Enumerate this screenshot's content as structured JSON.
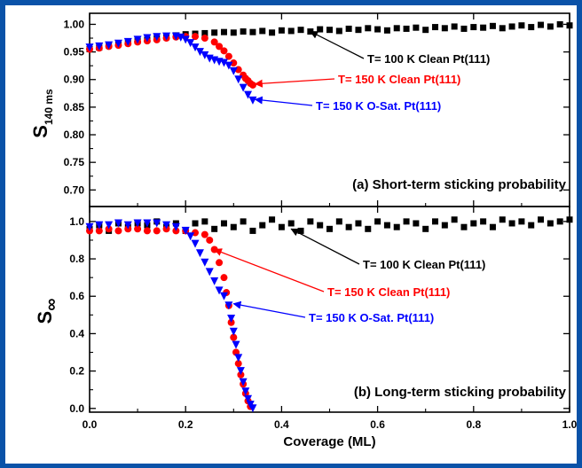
{
  "chart_data": [
    {
      "type": "scatter",
      "panel_label": "(a) Short-term sticking probability",
      "ylabel_main": "S",
      "ylabel_sub": "140 ms",
      "xlabel": "",
      "xlim": [
        0.0,
        1.0
      ],
      "ylim": [
        0.67,
        1.02
      ],
      "yticks": [
        "1.00",
        "0.95",
        "0.90",
        "0.85",
        "0.80",
        "0.75",
        "0.70"
      ],
      "series": [
        {
          "name": "T= 100 K Clean Pt(111)",
          "color": "#000000",
          "marker": "square",
          "x": [
            0.0,
            0.02,
            0.04,
            0.06,
            0.08,
            0.1,
            0.12,
            0.14,
            0.16,
            0.18,
            0.2,
            0.22,
            0.24,
            0.26,
            0.28,
            0.3,
            0.32,
            0.34,
            0.36,
            0.38,
            0.4,
            0.42,
            0.44,
            0.46,
            0.48,
            0.5,
            0.52,
            0.54,
            0.56,
            0.58,
            0.6,
            0.62,
            0.64,
            0.66,
            0.68,
            0.7,
            0.72,
            0.74,
            0.76,
            0.78,
            0.8,
            0.82,
            0.84,
            0.86,
            0.88,
            0.9,
            0.92,
            0.94,
            0.96,
            0.98,
            1.0
          ],
          "y": [
            0.955,
            0.958,
            0.962,
            0.965,
            0.968,
            0.97,
            0.972,
            0.975,
            0.977,
            0.98,
            0.982,
            0.983,
            0.984,
            0.985,
            0.986,
            0.985,
            0.987,
            0.986,
            0.988,
            0.985,
            0.989,
            0.988,
            0.99,
            0.987,
            0.991,
            0.99,
            0.988,
            0.992,
            0.99,
            0.993,
            0.991,
            0.989,
            0.993,
            0.992,
            0.994,
            0.99,
            0.995,
            0.993,
            0.996,
            0.992,
            0.995,
            0.994,
            0.997,
            0.993,
            0.996,
            0.998,
            0.995,
            0.999,
            0.996,
            1.0,
            0.998
          ]
        },
        {
          "name": "T= 150 K Clean Pt(111)",
          "color": "#ff0000",
          "marker": "circle",
          "x": [
            0.0,
            0.02,
            0.04,
            0.06,
            0.08,
            0.1,
            0.12,
            0.14,
            0.16,
            0.18,
            0.2,
            0.22,
            0.24,
            0.26,
            0.27,
            0.28,
            0.29,
            0.3,
            0.31,
            0.32,
            0.325,
            0.33,
            0.335,
            0.34
          ],
          "y": [
            0.955,
            0.957,
            0.96,
            0.962,
            0.965,
            0.968,
            0.97,
            0.972,
            0.975,
            0.977,
            0.978,
            0.978,
            0.975,
            0.968,
            0.96,
            0.952,
            0.942,
            0.93,
            0.918,
            0.908,
            0.902,
            0.898,
            0.893,
            0.89
          ]
        },
        {
          "name": "T= 150 K O-Sat. Pt(111)",
          "color": "#0000ff",
          "marker": "triangle-down",
          "x": [
            0.0,
            0.02,
            0.04,
            0.06,
            0.08,
            0.1,
            0.12,
            0.14,
            0.16,
            0.18,
            0.19,
            0.2,
            0.21,
            0.22,
            0.23,
            0.24,
            0.25,
            0.26,
            0.27,
            0.28,
            0.29,
            0.3,
            0.31,
            0.32,
            0.33,
            0.34
          ],
          "y": [
            0.958,
            0.96,
            0.962,
            0.965,
            0.968,
            0.972,
            0.975,
            0.977,
            0.978,
            0.978,
            0.976,
            0.972,
            0.966,
            0.958,
            0.95,
            0.944,
            0.938,
            0.935,
            0.932,
            0.93,
            0.925,
            0.915,
            0.9,
            0.885,
            0.872,
            0.862
          ]
        }
      ],
      "annotations": [
        {
          "text": "T= 100 K Clean Pt(111)",
          "color": "#000000",
          "arrow_to": [
            0.46,
            0.987
          ]
        },
        {
          "text": "T= 150 K Clean Pt(111)",
          "color": "#ff0000",
          "arrow_to": [
            0.345,
            0.892
          ]
        },
        {
          "text": "T= 150 K O-Sat. Pt(111)",
          "color": "#0000ff",
          "arrow_to": [
            0.345,
            0.864
          ]
        }
      ]
    },
    {
      "type": "scatter",
      "panel_label": "(b) Long-term sticking probability",
      "ylabel_main": "S",
      "ylabel_sub": "∞",
      "xlabel": "Coverage (ML)",
      "xlim": [
        0.0,
        1.0
      ],
      "ylim": [
        -0.02,
        1.08
      ],
      "xticks": [
        "0.0",
        "0.2",
        "0.4",
        "0.6",
        "0.8",
        "1.0"
      ],
      "yticks": [
        "1.0",
        "0.8",
        "0.6",
        "0.4",
        "0.2",
        "0.0"
      ],
      "series": [
        {
          "name": "T= 100 K Clean Pt(111)",
          "color": "#000000",
          "marker": "square",
          "x": [
            0.0,
            0.02,
            0.04,
            0.06,
            0.08,
            0.1,
            0.12,
            0.14,
            0.16,
            0.18,
            0.2,
            0.22,
            0.24,
            0.26,
            0.28,
            0.3,
            0.32,
            0.34,
            0.36,
            0.38,
            0.4,
            0.42,
            0.44,
            0.46,
            0.48,
            0.5,
            0.52,
            0.54,
            0.56,
            0.58,
            0.6,
            0.62,
            0.64,
            0.66,
            0.68,
            0.7,
            0.72,
            0.74,
            0.76,
            0.78,
            0.8,
            0.82,
            0.84,
            0.86,
            0.88,
            0.9,
            0.92,
            0.94,
            0.96,
            0.98,
            1.0
          ],
          "y": [
            0.96,
            0.98,
            0.95,
            0.99,
            0.97,
            0.99,
            0.98,
            1.0,
            0.97,
            0.99,
            0.95,
            0.99,
            1.0,
            0.96,
            0.99,
            0.97,
            1.0,
            0.95,
            0.98,
            1.01,
            0.97,
            0.99,
            0.95,
            1.0,
            0.98,
            0.96,
            1.0,
            0.97,
            0.99,
            0.96,
            1.0,
            0.98,
            0.97,
            1.0,
            0.99,
            0.96,
            1.0,
            0.98,
            1.01,
            0.97,
            0.99,
            1.0,
            0.97,
            1.01,
            0.99,
            1.0,
            0.98,
            1.01,
            0.99,
            1.0,
            1.01
          ]
        },
        {
          "name": "T= 150 K Clean Pt(111)",
          "color": "#ff0000",
          "marker": "circle",
          "x": [
            0.0,
            0.02,
            0.04,
            0.06,
            0.08,
            0.1,
            0.12,
            0.14,
            0.16,
            0.18,
            0.2,
            0.22,
            0.24,
            0.25,
            0.26,
            0.27,
            0.28,
            0.285,
            0.29,
            0.295,
            0.3,
            0.305,
            0.31,
            0.315,
            0.32,
            0.325,
            0.33,
            0.335
          ],
          "y": [
            0.95,
            0.95,
            0.96,
            0.95,
            0.96,
            0.96,
            0.95,
            0.95,
            0.96,
            0.95,
            0.95,
            0.94,
            0.93,
            0.9,
            0.85,
            0.78,
            0.7,
            0.62,
            0.55,
            0.46,
            0.38,
            0.3,
            0.24,
            0.18,
            0.13,
            0.08,
            0.04,
            0.01
          ]
        },
        {
          "name": "T= 150 K O-Sat. Pt(111)",
          "color": "#0000ff",
          "marker": "triangle-down",
          "x": [
            0.0,
            0.02,
            0.04,
            0.06,
            0.08,
            0.1,
            0.12,
            0.14,
            0.16,
            0.18,
            0.2,
            0.21,
            0.22,
            0.23,
            0.24,
            0.25,
            0.26,
            0.27,
            0.28,
            0.29,
            0.295,
            0.3,
            0.305,
            0.31,
            0.315,
            0.32,
            0.325,
            0.33,
            0.335,
            0.34
          ],
          "y": [
            0.97,
            0.98,
            0.98,
            0.99,
            0.98,
            0.99,
            0.99,
            0.99,
            0.98,
            0.97,
            0.95,
            0.92,
            0.88,
            0.83,
            0.78,
            0.73,
            0.68,
            0.63,
            0.6,
            0.55,
            0.48,
            0.41,
            0.34,
            0.27,
            0.2,
            0.14,
            0.09,
            0.05,
            0.02,
            0.0
          ]
        }
      ],
      "annotations": [
        {
          "text": "T= 100 K Clean Pt(111)",
          "color": "#000000",
          "arrow_to": [
            0.42,
            0.96
          ]
        },
        {
          "text": "T= 150 K Clean Pt(111)",
          "color": "#ff0000",
          "arrow_to": [
            0.26,
            0.85
          ]
        },
        {
          "text": "T= 150 K O-Sat. Pt(111)",
          "color": "#0000ff",
          "arrow_to": [
            0.3,
            0.56
          ]
        }
      ]
    }
  ]
}
